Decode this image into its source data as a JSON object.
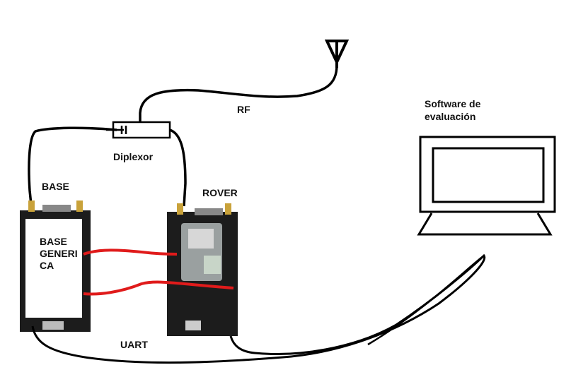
{
  "labels": {
    "rf": "RF",
    "software": "Software de",
    "software_line2": "evaluación",
    "diplexor": "Diplexor",
    "base": "BASE",
    "rover": "ROVER",
    "base_generic_1": "BASE",
    "base_generic_2": "GENERI",
    "base_generic_3": "CA",
    "uart": "UART"
  },
  "colors": {
    "wire": "#000000",
    "signal": "#e01b1b",
    "board": "#1c1c1c",
    "monitor": "#000000"
  }
}
